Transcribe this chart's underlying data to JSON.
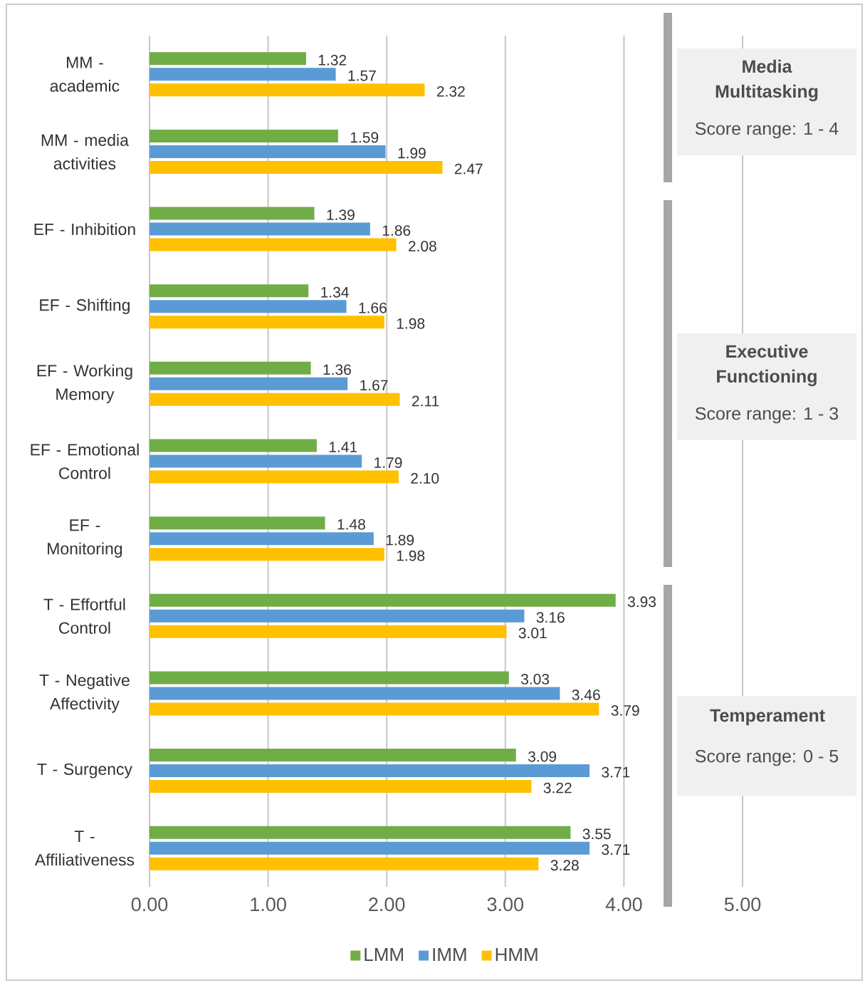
{
  "chart_data": {
    "type": "bar",
    "orientation": "horizontal",
    "categories": [
      "MM - academic",
      "MM - media activities",
      "EF - Inhibition",
      "EF - Shifting",
      "EF - Working Memory",
      "EF - Emotional Control",
      "EF - Monitoring",
      "T - Effortful Control",
      "T - Negative Affectivity",
      "T - Surgency",
      "T - Affiliativeness"
    ],
    "series": [
      {
        "name": "LMM",
        "color": "#70ad47",
        "values": [
          1.32,
          1.59,
          1.39,
          1.34,
          1.36,
          1.41,
          1.48,
          3.93,
          3.03,
          3.09,
          3.55
        ],
        "value_labels": [
          "1.32",
          "1.59",
          "1.39",
          "1.34",
          "1.36",
          "1.41",
          "1.48",
          "3.93",
          "3.03",
          "3.09",
          "3.55"
        ]
      },
      {
        "name": "IMM",
        "color": "#5b9bd5",
        "values": [
          1.57,
          1.99,
          1.86,
          1.66,
          1.67,
          1.79,
          1.89,
          3.16,
          3.46,
          3.71,
          3.71
        ],
        "value_labels": [
          "1.57",
          "1.99",
          "1.86",
          "1.66",
          "1.67",
          "1.79",
          "1.89",
          "3.16",
          "3.46",
          "3.71",
          "3.71"
        ]
      },
      {
        "name": "HMM",
        "color": "#ffc000",
        "values": [
          2.32,
          2.47,
          2.08,
          1.98,
          2.11,
          2.1,
          1.98,
          3.01,
          3.79,
          3.22,
          3.28
        ],
        "value_labels": [
          "2.32",
          "2.47",
          "2.08",
          "1.98",
          "2.11",
          "2.10",
          "1.98",
          "3.01",
          "3.79",
          "3.22",
          "3.28"
        ]
      }
    ],
    "xlim": [
      0,
      5
    ],
    "xticks": [
      {
        "value": 0,
        "label": "0.00"
      },
      {
        "value": 1,
        "label": "1.00"
      },
      {
        "value": 2,
        "label": "2.00"
      },
      {
        "value": 3,
        "label": "3.00"
      },
      {
        "value": 4,
        "label": "4.00"
      },
      {
        "value": 5,
        "label": "5.00"
      }
    ],
    "grid": "x",
    "legend": "bottom",
    "annotations": [
      "Media Multitasking",
      "Score range: 1 - 4",
      "Executive Functioning",
      "Score range: 1 - 3",
      "Temperament",
      "Score range: 0 - 5"
    ]
  }
}
